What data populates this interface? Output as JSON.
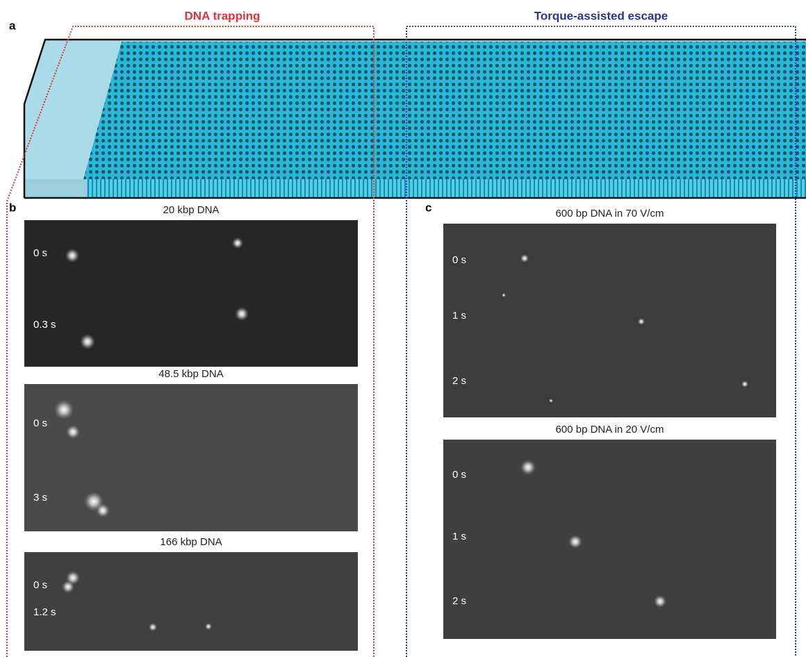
{
  "panel_a": {
    "label": "a",
    "left_region": "DNA trapping",
    "right_region": "Torque-assisted escape"
  },
  "panel_b": {
    "label": "b",
    "images": [
      {
        "title": "20 kbp DNA",
        "times": [
          "0 s",
          "0.3 s"
        ]
      },
      {
        "title": "48.5 kbp DNA",
        "times": [
          "0 s",
          "3 s"
        ]
      },
      {
        "title": "166 kbp DNA",
        "times": [
          "0 s",
          "1.2 s"
        ]
      }
    ]
  },
  "panel_c": {
    "label": "c",
    "images": [
      {
        "title": "600 bp DNA in 70 V/cm",
        "times": [
          "0 s",
          "1 s",
          "2 s"
        ]
      },
      {
        "title": "600 bp DNA in 20 V/cm",
        "times": [
          "0 s",
          "1 s",
          "2 s"
        ]
      }
    ]
  }
}
